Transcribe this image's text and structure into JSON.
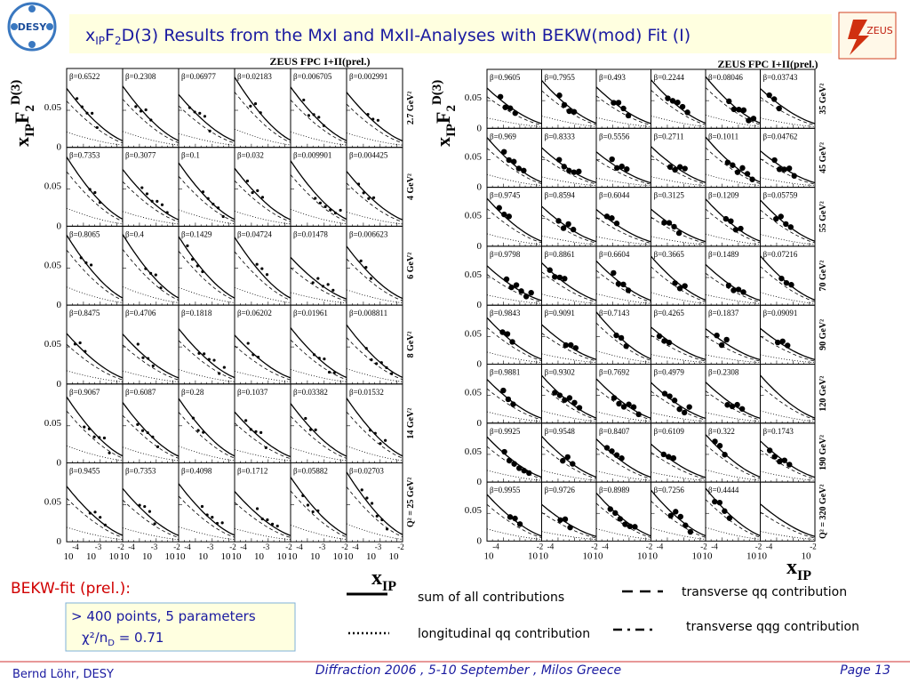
{
  "header": {
    "title": {
      "x": "x",
      "x_sub": "IP",
      "f": "F",
      "f_sub": "2",
      "rest": "D(3)  Results from the MxI and MxII-Analyses with BEKW(mod) Fit  (I)"
    },
    "logo_left": "DESY",
    "logo_right": "ZEUS"
  },
  "panels": [
    {
      "label": "ZEUS FPC I+II(prel.)",
      "ylabel": {
        "x": "x",
        "x_sub": "IP",
        "f": "F",
        "f_sub": "2",
        "sup": "D(3)"
      },
      "yticks": [
        "0.05",
        "0"
      ],
      "xtick_base": "10",
      "xtick_exps": [
        "-4",
        "-3",
        "-2"
      ],
      "xlabel": {
        "x": "x",
        "x_sub": "IP"
      },
      "rows": [
        {
          "q2": "2.7 GeV²",
          "betas": [
            "β=0.6522",
            "β=0.2308",
            "β=0.06977",
            "β=0.02183",
            "β=0.006705",
            "β=0.002991"
          ]
        },
        {
          "q2": "4 GeV²",
          "betas": [
            "β=0.7353",
            "β=0.3077",
            "β=0.1",
            "β=0.032",
            "β=0.009901",
            "β=0.004425"
          ]
        },
        {
          "q2": "6 GeV²",
          "betas": [
            "β=0.8065",
            "β=0.4",
            "β=0.1429",
            "β=0.04724",
            "β=0.01478",
            "β=0.006623"
          ]
        },
        {
          "q2": "8 GeV²",
          "betas": [
            "β=0.8475",
            "β=0.4706",
            "β=0.1818",
            "β=0.06202",
            "β=0.01961",
            "β=0.008811"
          ]
        },
        {
          "q2": "14 GeV²",
          "betas": [
            "β=0.9067",
            "β=0.6087",
            "β=0.28",
            "β=0.1037",
            "β=0.03382",
            "β=0.01532"
          ]
        },
        {
          "q2": "Q² = 25 GeV²",
          "betas": [
            "β=0.9455",
            "β=0.7353",
            "β=0.4098",
            "β=0.1712",
            "β=0.05882",
            "β=0.02703"
          ]
        }
      ]
    },
    {
      "label": "ZEUS FPC I+II(prel.)",
      "ylabel": {
        "x": "x",
        "x_sub": "IP",
        "f": "F",
        "f_sub": "2",
        "sup": "D(3)"
      },
      "yticks": [
        "0.05",
        "0"
      ],
      "xtick_base": "10",
      "xtick_exps": [
        "-4",
        "-2"
      ],
      "xlabel": {
        "x": "x",
        "x_sub": "IP"
      },
      "rows": [
        {
          "q2": "35 GeV²",
          "betas": [
            "β=0.9605",
            "β=0.7955",
            "β=0.493",
            "β=0.2244",
            "β=0.08046",
            "β=0.03743"
          ]
        },
        {
          "q2": "45 GeV²",
          "betas": [
            "β=0.969",
            "β=0.8333",
            "β=0.5556",
            "β=0.2711",
            "β=0.1011",
            "β=0.04762"
          ]
        },
        {
          "q2": "55 GeV²",
          "betas": [
            "β=0.9745",
            "β=0.8594",
            "β=0.6044",
            "β=0.3125",
            "β=0.1209",
            "β=0.05759"
          ]
        },
        {
          "q2": "70 GeV²",
          "betas": [
            "β=0.9798",
            "β=0.8861",
            "β=0.6604",
            "β=0.3665",
            "β=0.1489",
            "β=0.07216"
          ]
        },
        {
          "q2": "90 GeV²",
          "betas": [
            "β=0.9843",
            "β=0.9091",
            "β=0.7143",
            "β=0.4265",
            "β=0.1837",
            "β=0.09091"
          ]
        },
        {
          "q2": "120 GeV²",
          "betas": [
            "β=0.9881",
            "β=0.9302",
            "β=0.7692",
            "β=0.4979",
            "β=0.2308",
            null
          ]
        },
        {
          "q2": "190 GeV²",
          "betas": [
            "β=0.9925",
            "β=0.9548",
            "β=0.8407",
            "β=0.6109",
            "β=0.322",
            "β=0.1743"
          ]
        },
        {
          "q2": "Q² = 320 GeV²",
          "betas": [
            "β=0.9955",
            "β=0.9726",
            "β=0.8989",
            "β=0.7256",
            "β=0.4444",
            null
          ]
        }
      ]
    }
  ],
  "fit": {
    "heading": "BEKW-fit (prel.):",
    "line1": "> 400 points, 5 parameters",
    "line2": "χ²/n",
    "line2_sub": "D",
    "line2_rest": " = 0.71"
  },
  "legend": [
    {
      "label": "sum of all contributions",
      "style": "solid"
    },
    {
      "label": "longitudinal qq contribution",
      "style": "dotted"
    },
    {
      "label": "transverse qq contribution",
      "style": "dashed"
    },
    {
      "label": "transverse qqg contribution",
      "style": "dashdot"
    }
  ],
  "footer": {
    "author": "Bernd Löhr, DESY",
    "event": "Diffraction 2006 ,  5-10 September ,  Milos Greece",
    "page": "Page 13"
  }
}
